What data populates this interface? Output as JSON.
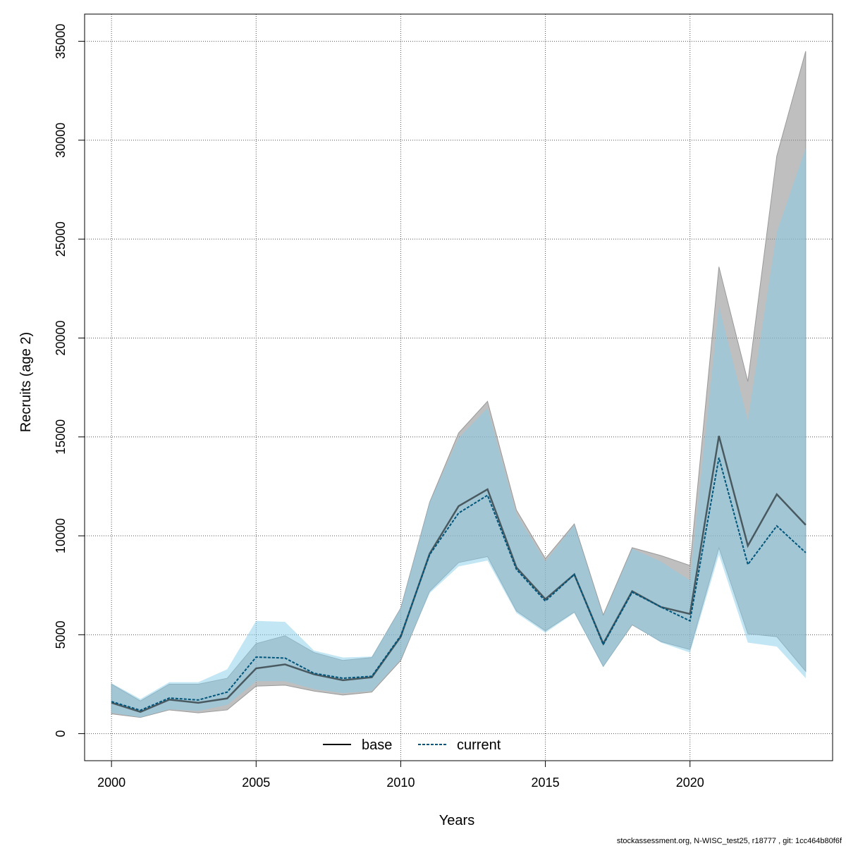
{
  "chart_data": {
    "type": "area",
    "xlabel": "Years",
    "ylabel": "Recruits (age 2)",
    "xlim": [
      1999.07,
      2024.93
    ],
    "ylim": [
      -1368,
      36375
    ],
    "x_ticks": [
      2000,
      2005,
      2010,
      2015,
      2020
    ],
    "y_ticks": [
      0,
      5000,
      10000,
      15000,
      20000,
      25000,
      30000,
      35000
    ],
    "grid": true,
    "legend_position": "bottom-center",
    "x": [
      2000,
      2001,
      2002,
      2003,
      2004,
      2005,
      2006,
      2007,
      2008,
      2009,
      2010,
      2011,
      2012,
      2013,
      2014,
      2015,
      2016,
      2017,
      2018,
      2019,
      2020,
      2021,
      2022,
      2023,
      2024
    ],
    "series": [
      {
        "name": "base",
        "line_style": "solid",
        "color": "#000000",
        "band_color": "#8a8a8a",
        "values": [
          1560,
          1100,
          1720,
          1560,
          1780,
          3300,
          3500,
          3000,
          2700,
          2850,
          4900,
          9100,
          11500,
          12350,
          8400,
          6800,
          8050,
          4550,
          7200,
          6400,
          6050,
          15050,
          9500,
          12100,
          10550
        ],
        "lower": [
          1000,
          820,
          1200,
          1050,
          1200,
          2400,
          2450,
          2150,
          1950,
          2100,
          3700,
          7200,
          8650,
          8950,
          6200,
          5200,
          6150,
          3400,
          5500,
          4650,
          4250,
          9400,
          5050,
          4900,
          3150
        ],
        "upper": [
          2500,
          1650,
          2500,
          2500,
          2800,
          4550,
          4950,
          4100,
          3700,
          3850,
          6350,
          11700,
          15200,
          16800,
          11300,
          8850,
          10600,
          6000,
          9400,
          9000,
          8500,
          23600,
          17800,
          29200,
          34500
        ]
      },
      {
        "name": "current",
        "line_style": "dashed",
        "color": "#00557a",
        "band_color": "#87ceeb",
        "values": [
          1620,
          1180,
          1800,
          1700,
          2100,
          3870,
          3820,
          3050,
          2800,
          2900,
          4950,
          9050,
          11150,
          12050,
          8300,
          6700,
          8050,
          4500,
          7150,
          6400,
          5700,
          13950,
          8550,
          10500,
          9150
        ],
        "lower": [
          1050,
          820,
          1230,
          1150,
          1450,
          2650,
          2650,
          2250,
          2050,
          2150,
          3750,
          7100,
          8450,
          8750,
          6100,
          5100,
          6100,
          3350,
          5500,
          4600,
          4100,
          9050,
          4600,
          4400,
          2800
        ],
        "upper": [
          2550,
          1750,
          2600,
          2600,
          3250,
          5700,
          5650,
          4200,
          3850,
          3900,
          6350,
          11700,
          14950,
          16450,
          11100,
          8700,
          10550,
          5950,
          9350,
          8700,
          7750,
          21600,
          15850,
          25350,
          29600
        ]
      }
    ],
    "footer": "stockassessment.org, N-WISC_test25, r18777 , git: 1cc464b80f6f"
  }
}
